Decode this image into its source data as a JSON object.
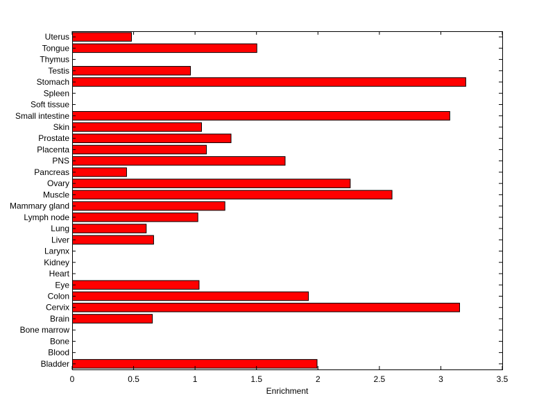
{
  "chart_data": {
    "type": "bar",
    "orientation": "horizontal",
    "title": "",
    "xlabel": "Enrichment",
    "ylabel": "",
    "xlim": [
      0,
      3.5
    ],
    "xticks": [
      "0",
      "0.5",
      "1",
      "1.5",
      "2",
      "2.5",
      "3",
      "3.5"
    ],
    "grid": false,
    "legend": "none",
    "bar_color": "#ff0000",
    "categories": [
      "Bladder",
      "Blood",
      "Bone",
      "Bone marrow",
      "Brain",
      "Cervix",
      "Colon",
      "Eye",
      "Heart",
      "Kidney",
      "Larynx",
      "Liver",
      "Lung",
      "Lymph node",
      "Mammary gland",
      "Muscle",
      "Ovary",
      "Pancreas",
      "PNS",
      "Placenta",
      "Prostate",
      "Skin",
      "Small intestine",
      "Soft tissue",
      "Spleen",
      "Stomach",
      "Testis",
      "Thymus",
      "Tongue",
      "Uterus"
    ],
    "values": [
      1.99,
      0,
      0,
      0,
      0.65,
      3.15,
      1.92,
      1.03,
      0,
      0,
      0,
      0.66,
      0.6,
      1.02,
      1.24,
      2.6,
      2.26,
      0.44,
      1.73,
      1.09,
      1.29,
      1.05,
      3.07,
      0,
      0,
      3.2,
      0.96,
      0,
      1.5,
      0.48
    ]
  }
}
